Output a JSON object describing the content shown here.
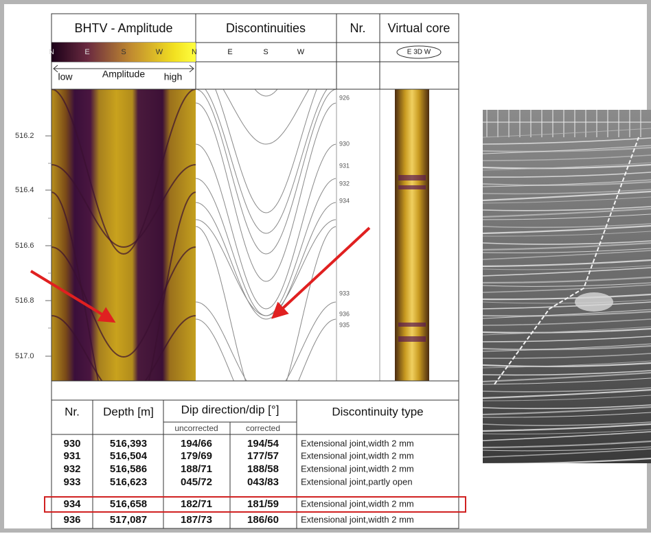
{
  "log_header": {
    "columns": [
      "BHTV - Amplitude",
      "Discontinuities",
      "Nr.",
      "Virtual core"
    ],
    "amplitude_compass": [
      "N",
      "E",
      "S",
      "W",
      "N"
    ],
    "discontinuity_compass": [
      "E",
      "S",
      "W"
    ],
    "virtual_core_compass": "E 3D W",
    "amplitude_legend": {
      "low": "low",
      "title": "Amplitude",
      "high": "high"
    }
  },
  "depth_axis": [
    "516.2",
    "516.4",
    "516.6",
    "516.8",
    "517.0"
  ],
  "discontinuity_labels": [
    "926",
    "930",
    "931",
    "932",
    "934",
    "933",
    "936",
    "935"
  ],
  "table": {
    "headers": {
      "nr": "Nr.",
      "depth": "Depth [m]",
      "dip": "Dip direction/dip [°]",
      "uncorrected": "uncorrected",
      "corrected": "corrected",
      "type": "Discontinuity type"
    },
    "rows": [
      [
        "930",
        "516,393",
        "194/66",
        "194/54",
        "Extensional joint,width 2 mm"
      ],
      [
        "931",
        "516,504",
        "179/69",
        "177/57",
        "Extensional joint,width 2 mm"
      ],
      [
        "932",
        "516,586",
        "188/71",
        "188/58",
        "Extensional joint,width 2 mm"
      ],
      [
        "933",
        "516,623",
        "045/72",
        "043/83",
        "Extensional joint,partly open"
      ],
      [
        "934",
        "516,658",
        "182/71",
        "181/59",
        "Extensional joint,width 2 mm"
      ],
      [
        "936",
        "517,087",
        "187/73",
        "186/60",
        "Extensional joint,width 2 mm"
      ]
    ]
  }
}
